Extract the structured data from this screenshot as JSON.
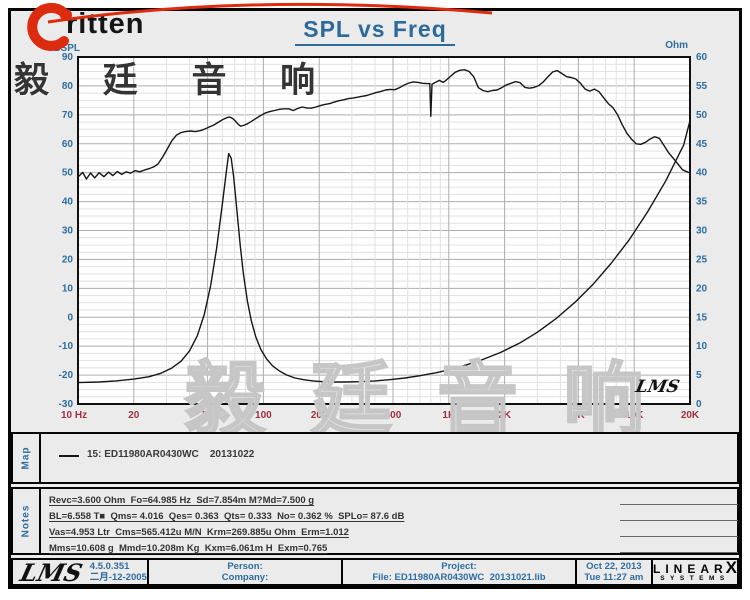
{
  "page": {
    "title": "SPL vs Freq"
  },
  "brand": {
    "logo_text": "ritten",
    "logo_cn": "毅 廷 音 响"
  },
  "chart_logo": "LMS",
  "chart_data": {
    "type": "line",
    "title": "SPL vs Freq",
    "x_axis": {
      "label": "Hz",
      "scale": "log",
      "min": 10,
      "max": 20000,
      "ticks": [
        {
          "f": 10,
          "label": "10 Hz"
        },
        {
          "f": 20,
          "label": "20"
        },
        {
          "f": 50,
          "label": "50"
        },
        {
          "f": 100,
          "label": "100"
        },
        {
          "f": 200,
          "label": "200"
        },
        {
          "f": 500,
          "label": "500"
        },
        {
          "f": 1000,
          "label": "1K"
        },
        {
          "f": 2000,
          "label": "2K"
        },
        {
          "f": 5000,
          "label": "5K"
        },
        {
          "f": 10000,
          "label": "10K"
        },
        {
          "f": 20000,
          "label": "20K"
        }
      ]
    },
    "y_left": {
      "label": "dBSPL",
      "min": -30,
      "max": 90,
      "step": 10
    },
    "y_right": {
      "label": "Ohm",
      "min": 0,
      "max": 60,
      "step": 5
    },
    "legend_position": "none",
    "grid": true,
    "colors": {
      "curve": "#161616",
      "grid_minor": "#e1e1e1",
      "grid_major": "#adadad",
      "axis_blue": "#2e6da0",
      "axis_red": "#9e3040"
    },
    "series": [
      {
        "name": "SPL",
        "axis": "left",
        "unit": "dB",
        "points": [
          [
            10,
            48.5
          ],
          [
            10.6,
            50.1
          ],
          [
            11.1,
            47.8
          ],
          [
            11.7,
            49.9
          ],
          [
            12.3,
            48.2
          ],
          [
            13,
            50
          ],
          [
            13.8,
            48.6
          ],
          [
            14.6,
            50.2
          ],
          [
            15.4,
            49
          ],
          [
            16.3,
            50.4
          ],
          [
            17.2,
            49.4
          ],
          [
            18.2,
            50.3
          ],
          [
            19.2,
            49.8
          ],
          [
            20.3,
            50.7
          ],
          [
            21.5,
            50.3
          ],
          [
            22.8,
            50.9
          ],
          [
            24.2,
            51.4
          ],
          [
            25.6,
            52
          ],
          [
            27,
            53
          ],
          [
            28.6,
            55.4
          ],
          [
            30.3,
            58.2
          ],
          [
            32,
            61
          ],
          [
            34,
            63
          ],
          [
            36,
            63.9
          ],
          [
            38,
            64.2
          ],
          [
            40.5,
            64.4
          ],
          [
            43,
            64.2
          ],
          [
            45.5,
            64.5
          ],
          [
            48,
            65
          ],
          [
            51,
            65.8
          ],
          [
            54,
            66.5
          ],
          [
            57,
            67.4
          ],
          [
            60.5,
            68.4
          ],
          [
            64,
            69.1
          ],
          [
            66,
            69.2
          ],
          [
            68.5,
            68.7
          ],
          [
            71,
            67.7
          ],
          [
            73.5,
            66.6
          ],
          [
            75.5,
            66.1
          ],
          [
            78,
            66.3
          ],
          [
            82,
            66.9
          ],
          [
            86.5,
            67.8
          ],
          [
            91.5,
            68.8
          ],
          [
            97,
            69.8
          ],
          [
            103,
            70.7
          ],
          [
            109,
            71.2
          ],
          [
            115,
            71.5
          ],
          [
            122,
            71.9
          ],
          [
            129,
            72.1
          ],
          [
            137,
            72.1
          ],
          [
            145,
            71.5
          ],
          [
            153,
            72.2
          ],
          [
            162,
            72.7
          ],
          [
            171,
            72.4
          ],
          [
            181,
            72.3
          ],
          [
            192,
            72.7
          ],
          [
            203,
            73.2
          ],
          [
            215,
            73.6
          ],
          [
            228,
            73.9
          ],
          [
            241,
            74.4
          ],
          [
            256,
            74.9
          ],
          [
            271,
            75.2
          ],
          [
            287,
            75.6
          ],
          [
            304,
            75.8
          ],
          [
            322,
            76.1
          ],
          [
            341,
            76.4
          ],
          [
            361,
            76.7
          ],
          [
            383,
            77.2
          ],
          [
            406,
            77.7
          ],
          [
            430,
            78.1
          ],
          [
            456,
            78.6
          ],
          [
            483,
            78.8
          ],
          [
            512,
            78.7
          ],
          [
            542,
            79.4
          ],
          [
            575,
            80.3
          ],
          [
            609,
            81
          ],
          [
            645,
            81.4
          ],
          [
            684,
            81.2
          ],
          [
            724,
            80.9
          ],
          [
            767,
            80.8
          ],
          [
            790,
            80.8
          ],
          [
            800,
            69.5
          ],
          [
            812,
            80.6
          ],
          [
            850,
            81.3
          ],
          [
            890,
            81.9
          ],
          [
            932,
            81.2
          ],
          [
            965,
            81.9
          ],
          [
            1022,
            83.3
          ],
          [
            1082,
            84.7
          ],
          [
            1147,
            85.4
          ],
          [
            1215,
            85.6
          ],
          [
            1287,
            85
          ],
          [
            1363,
            83.2
          ],
          [
            1444,
            79.4
          ],
          [
            1530,
            78.4
          ],
          [
            1621,
            78
          ],
          [
            1717,
            78.4
          ],
          [
            1819,
            78.6
          ],
          [
            1927,
            79.4
          ],
          [
            2041,
            80.3
          ],
          [
            2162,
            80.9
          ],
          [
            2290,
            81.5
          ],
          [
            2426,
            81.1
          ],
          [
            2570,
            79.5
          ],
          [
            2723,
            79.2
          ],
          [
            2884,
            79.5
          ],
          [
            3055,
            80.1
          ],
          [
            3236,
            81.4
          ],
          [
            3428,
            83.2
          ],
          [
            3631,
            84.8
          ],
          [
            3847,
            85.3
          ],
          [
            4075,
            84.3
          ],
          [
            4317,
            83.2
          ],
          [
            4573,
            82.9
          ],
          [
            4844,
            82.4
          ],
          [
            5131,
            80.9
          ],
          [
            5435,
            78.9
          ],
          [
            5758,
            78.2
          ],
          [
            6099,
            78.9
          ],
          [
            6461,
            78
          ],
          [
            6844,
            75.9
          ],
          [
            7250,
            73.9
          ],
          [
            7680,
            72.5
          ],
          [
            8136,
            70
          ],
          [
            8618,
            66.6
          ],
          [
            9129,
            63.6
          ],
          [
            9670,
            61.6
          ],
          [
            10244,
            60
          ],
          [
            10851,
            59.8
          ],
          [
            11495,
            60.5
          ],
          [
            12176,
            61.6
          ],
          [
            12898,
            62.4
          ],
          [
            13663,
            61.9
          ],
          [
            14473,
            59.4
          ],
          [
            15331,
            56.9
          ],
          [
            16240,
            55
          ],
          [
            17203,
            53
          ],
          [
            18223,
            51
          ],
          [
            19303,
            50.3
          ],
          [
            20000,
            49.9
          ]
        ]
      },
      {
        "name": "Impedance",
        "axis": "right",
        "unit": "Ohm",
        "points": [
          [
            10,
            3.7
          ],
          [
            13,
            3.8
          ],
          [
            16,
            4.0
          ],
          [
            20,
            4.3
          ],
          [
            24,
            4.7
          ],
          [
            28,
            5.3
          ],
          [
            32,
            6.2
          ],
          [
            36,
            7.4
          ],
          [
            40,
            9.2
          ],
          [
            44,
            11.8
          ],
          [
            48,
            15.5
          ],
          [
            52,
            20.5
          ],
          [
            56,
            27
          ],
          [
            60,
            34.5
          ],
          [
            63,
            40
          ],
          [
            65,
            43.3
          ],
          [
            67,
            42.5
          ],
          [
            69,
            39.5
          ],
          [
            72,
            33.5
          ],
          [
            75,
            27.5
          ],
          [
            78,
            22.5
          ],
          [
            82,
            17.8
          ],
          [
            86,
            14.4
          ],
          [
            91,
            11.6
          ],
          [
            97,
            9.4
          ],
          [
            104,
            7.8
          ],
          [
            112,
            6.6
          ],
          [
            122,
            5.7
          ],
          [
            134,
            5.0
          ],
          [
            148,
            4.5
          ],
          [
            165,
            4.2
          ],
          [
            185,
            4.0
          ],
          [
            210,
            3.85
          ],
          [
            240,
            3.8
          ],
          [
            280,
            3.8
          ],
          [
            330,
            3.85
          ],
          [
            400,
            4.0
          ],
          [
            480,
            4.2
          ],
          [
            580,
            4.5
          ],
          [
            700,
            4.9
          ],
          [
            850,
            5.4
          ],
          [
            1000,
            5.9
          ],
          [
            1200,
            6.6
          ],
          [
            1500,
            7.6
          ],
          [
            1900,
            8.9
          ],
          [
            2400,
            10.5
          ],
          [
            3000,
            12.4
          ],
          [
            3800,
            14.8
          ],
          [
            4800,
            17.6
          ],
          [
            6000,
            20.7
          ],
          [
            7500,
            24.3
          ],
          [
            9400,
            28.4
          ],
          [
            11800,
            33.2
          ],
          [
            14800,
            38.6
          ],
          [
            18500,
            44.8
          ],
          [
            20000,
            49.0
          ]
        ]
      }
    ]
  },
  "watermark": {
    "top": "毅 廷 音 响",
    "bottom": "毅 廷 音 响"
  },
  "map": {
    "label": "Map",
    "entry": "15: ED11980AR0430WC    20131022"
  },
  "notes": {
    "label": "Notes",
    "lines": [
      "Revc=3.600 Ohm  Fo=64.985 Hz  Sd=7.854m M?Md=7.500 g",
      "BL=6.558 T■  Qms= 4.016  Qes= 0.363  Qts= 0.333  No= 0.362 %  SPLo= 87.6 dB",
      "Vas=4.953 Ltr  Cms=565.412u M/N  Krm=269.885u Ohm  Erm=1.012",
      "Mms=10.608 g  Mmd=10.208m Kg  Kxm=6.061m H  Exm=0.765"
    ]
  },
  "footer": {
    "logo": "LMS",
    "version": "4.5.0.351",
    "date_cn": "二月-12-2005",
    "person_label": "Person:",
    "company_label": "Company:",
    "project_label": "Project:",
    "file_label": "File: ED11980AR0430WC  20131021.lib",
    "date": "Oct 22, 2013",
    "time": "Tue 11:27 am",
    "brand_main": "LINEAR",
    "brand_x": "X",
    "brand_sub": "SYSTEMS"
  }
}
